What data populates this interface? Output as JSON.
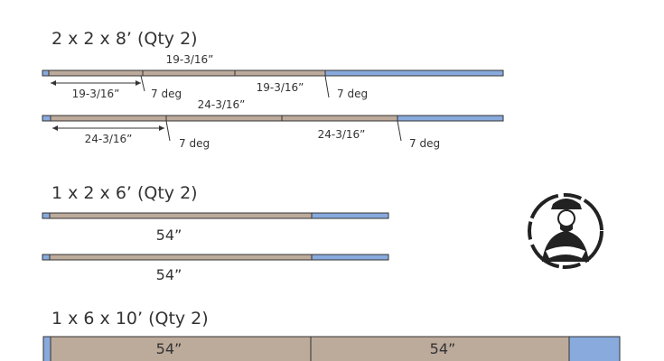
{
  "sections": [
    {
      "title": "2 x 2 x 8’ (Qty 2)",
      "boards": [
        {
          "labels": [
            "19-3/16”",
            "19-3/16”",
            "7 deg",
            "19-3/16”",
            "7 deg"
          ]
        },
        {
          "labels": [
            "24-3/16”",
            "24-3/16”",
            "7 deg",
            "24-3/16”",
            "7 deg"
          ]
        }
      ]
    },
    {
      "title": "1 x 2 x 6’ (Qty 2)",
      "boards": [
        {
          "labels": [
            "54”"
          ]
        },
        {
          "labels": [
            "54”"
          ]
        }
      ]
    },
    {
      "title": "1 x 6 x 10’ (Qty 2)",
      "boards": [
        {
          "labels": [
            "54”",
            "54”"
          ]
        }
      ]
    }
  ]
}
